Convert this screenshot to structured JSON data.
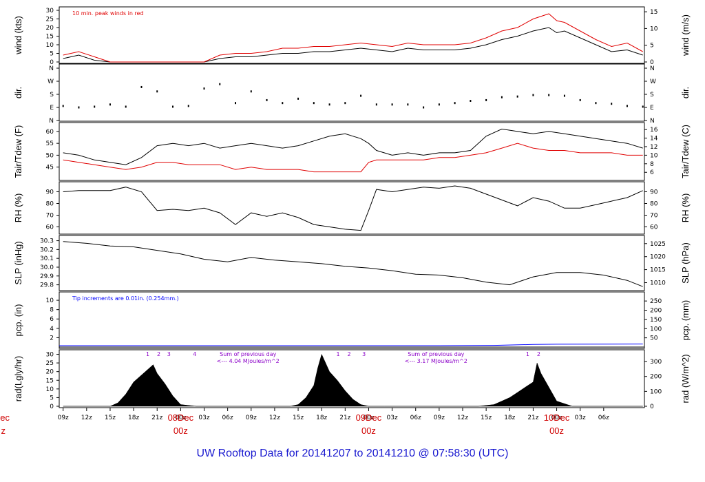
{
  "title": "UW Rooftop Data for 20141207  to  20141210 @ 07:58:30  (UTC)",
  "colors": {
    "primary": "#000000",
    "secondary": "#e00000",
    "precip": "#0000ff",
    "annotation": "#8b00c8",
    "title": "#1a1ad0",
    "date": "#d00000"
  },
  "x_axis": {
    "hour_labels": [
      "09z",
      "12z",
      "15z",
      "18z",
      "21z",
      "00z",
      "03z",
      "06z",
      "09z",
      "12z",
      "15z",
      "18z",
      "21z",
      "00z",
      "03z",
      "06z",
      "09z",
      "12z",
      "15z",
      "18z",
      "21z",
      "00z",
      "03z",
      "06z"
    ],
    "hour_offsets": [
      0,
      3,
      6,
      9,
      12,
      15,
      18,
      21,
      24,
      27,
      30,
      33,
      36,
      39,
      42,
      45,
      48,
      51,
      54,
      57,
      60,
      63,
      66,
      69
    ],
    "x_range_hours": [
      -0.5,
      74.2
    ],
    "day_marks": [
      {
        "hour_offset": 15,
        "date": "08Dec",
        "time": "00z"
      },
      {
        "hour_offset": 39,
        "date": "09Dec",
        "time": "00z"
      },
      {
        "hour_offset": 63,
        "date": "10Dec",
        "time": "00z"
      }
    ],
    "left_cut": {
      "date": "Dec",
      "time": "z"
    }
  },
  "chart_data": [
    {
      "id": "wind",
      "type": "line",
      "ylabel_left": "wind (kts)",
      "ylabel_right": "wind (m/s)",
      "ylim": [
        0,
        30
      ],
      "yticks_left": [
        "0",
        "5",
        "10",
        "15",
        "20",
        "25",
        "30"
      ],
      "yticks_right": [
        {
          "v": 0,
          "t": "0"
        },
        {
          "v": 9.72,
          "t": "5"
        },
        {
          "v": 19.44,
          "t": "10"
        },
        {
          "v": 29.16,
          "t": "15"
        }
      ],
      "annotation": "10 min. peak winds in red",
      "series": [
        {
          "color": "#000000",
          "x": [
            0,
            2,
            4,
            6,
            8,
            10,
            12,
            14,
            16,
            18,
            20,
            22,
            24,
            26,
            28,
            30,
            32,
            34,
            36,
            38,
            40,
            42,
            44,
            46,
            48,
            50,
            52,
            54,
            56,
            58,
            60,
            62,
            63,
            64,
            66,
            68,
            70,
            72,
            74
          ],
          "values": [
            2,
            4,
            1,
            0,
            0,
            0,
            0,
            0,
            0,
            0,
            2,
            3,
            3,
            4,
            5,
            5,
            6,
            6,
            7,
            8,
            7,
            6,
            8,
            7,
            7,
            7,
            8,
            10,
            13,
            15,
            18,
            20,
            17,
            18,
            14,
            10,
            6,
            7,
            4
          ]
        },
        {
          "color": "#e00000",
          "x": [
            0,
            2,
            4,
            6,
            8,
            10,
            12,
            14,
            16,
            18,
            20,
            22,
            24,
            26,
            28,
            30,
            32,
            34,
            36,
            38,
            40,
            42,
            44,
            46,
            48,
            50,
            52,
            54,
            56,
            58,
            60,
            62,
            63,
            64,
            66,
            68,
            70,
            72,
            74
          ],
          "values": [
            4,
            6,
            3,
            0,
            0,
            0,
            0,
            0,
            0,
            0,
            4,
            5,
            5,
            6,
            8,
            8,
            9,
            9,
            10,
            11,
            10,
            9,
            11,
            10,
            10,
            10,
            11,
            14,
            18,
            20,
            25,
            28,
            24,
            23,
            18,
            13,
            9,
            11,
            6
          ]
        }
      ]
    },
    {
      "id": "dir",
      "type": "scatter",
      "ylabel_left": "dir.",
      "ylabel_right": "dir.",
      "ylim": [
        0,
        360
      ],
      "yticks_left": [
        "N",
        "E",
        "S",
        "W",
        "N"
      ],
      "yticks_right": [
        "N",
        "E",
        "S",
        "W",
        "N"
      ],
      "series": [
        {
          "color": "#000000",
          "x": [
            0,
            2,
            4,
            6,
            8,
            10,
            12,
            14,
            16,
            18,
            20,
            22,
            24,
            26,
            28,
            30,
            32,
            34,
            36,
            38,
            40,
            42,
            44,
            46,
            48,
            50,
            52,
            54,
            56,
            58,
            60,
            62,
            64,
            66,
            68,
            70,
            72,
            74
          ],
          "values": [
            100,
            90,
            95,
            110,
            95,
            230,
            200,
            95,
            100,
            220,
            250,
            120,
            200,
            140,
            120,
            150,
            120,
            110,
            120,
            170,
            110,
            110,
            110,
            90,
            110,
            120,
            135,
            140,
            160,
            165,
            175,
            175,
            170,
            140,
            120,
            115,
            100,
            95
          ]
        }
      ]
    },
    {
      "id": "temp",
      "type": "line",
      "ylabel_left": "Tair/Tdew (F)",
      "ylabel_right": "Tair/Tdew (C)",
      "ylim": [
        42,
        62
      ],
      "yticks_left": [
        "45",
        "50",
        "55",
        "60"
      ],
      "yticks_right": [
        {
          "v": 42.8,
          "t": "6"
        },
        {
          "v": 46.4,
          "t": "8"
        },
        {
          "v": 50,
          "t": "10"
        },
        {
          "v": 53.6,
          "t": "12"
        },
        {
          "v": 57.2,
          "t": "14"
        },
        {
          "v": 60.8,
          "t": "16"
        }
      ],
      "series": [
        {
          "color": "#000000",
          "x": [
            0,
            2,
            4,
            6,
            8,
            10,
            12,
            14,
            16,
            18,
            20,
            22,
            24,
            26,
            28,
            30,
            32,
            34,
            36,
            38,
            39,
            40,
            42,
            44,
            46,
            48,
            50,
            52,
            54,
            56,
            58,
            60,
            62,
            64,
            66,
            68,
            70,
            72,
            74
          ],
          "values": [
            51,
            50,
            48,
            47,
            46,
            49,
            54,
            55,
            54,
            55,
            53,
            54,
            55,
            54,
            53,
            54,
            56,
            58,
            59,
            57,
            55,
            52,
            50,
            51,
            50,
            51,
            51,
            52,
            58,
            61,
            60,
            59,
            60,
            59,
            58,
            57,
            56,
            55,
            53
          ]
        },
        {
          "color": "#e00000",
          "x": [
            0,
            2,
            4,
            6,
            8,
            10,
            12,
            14,
            16,
            18,
            20,
            22,
            24,
            26,
            28,
            30,
            32,
            34,
            36,
            38,
            39,
            40,
            42,
            44,
            46,
            48,
            50,
            52,
            54,
            56,
            58,
            60,
            62,
            64,
            66,
            68,
            70,
            72,
            74
          ],
          "values": [
            48,
            47,
            46,
            45,
            44,
            45,
            47,
            47,
            46,
            46,
            46,
            44,
            45,
            44,
            44,
            44,
            43,
            43,
            43,
            43,
            47,
            48,
            48,
            48,
            48,
            49,
            49,
            50,
            51,
            53,
            55,
            53,
            52,
            52,
            51,
            51,
            51,
            50,
            50
          ]
        }
      ]
    },
    {
      "id": "rh",
      "type": "line",
      "ylabel_left": "RH (%)",
      "ylabel_right": "RH (%)",
      "ylim": [
        55,
        95
      ],
      "yticks_left": [
        "60",
        "70",
        "80",
        "90"
      ],
      "yticks_right": [
        "60",
        "70",
        "80",
        "90"
      ],
      "series": [
        {
          "color": "#000000",
          "x": [
            0,
            2,
            4,
            6,
            8,
            10,
            12,
            14,
            16,
            18,
            20,
            22,
            24,
            26,
            28,
            30,
            32,
            34,
            36,
            38,
            39,
            40,
            42,
            44,
            46,
            48,
            50,
            52,
            54,
            56,
            58,
            60,
            62,
            64,
            66,
            68,
            70,
            72,
            74
          ],
          "values": [
            90,
            91,
            91,
            91,
            94,
            90,
            74,
            75,
            74,
            76,
            72,
            62,
            72,
            69,
            72,
            68,
            62,
            60,
            58,
            57,
            74,
            92,
            90,
            92,
            94,
            93,
            95,
            93,
            88,
            83,
            78,
            85,
            82,
            76,
            76,
            79,
            82,
            85,
            91
          ]
        }
      ]
    },
    {
      "id": "slp",
      "type": "line",
      "ylabel_left": "SLP (inHg)",
      "ylabel_right": "SLP (hPa)",
      "ylim": [
        29.75,
        30.32
      ],
      "yticks_left": [
        "29.8",
        "29.9",
        "30.0",
        "30.1",
        "30.2",
        "30.3"
      ],
      "yticks_right": [
        {
          "v": 29.824,
          "t": "1010"
        },
        {
          "v": 29.972,
          "t": "1015"
        },
        {
          "v": 30.119,
          "t": "1020"
        },
        {
          "v": 30.267,
          "t": "1025"
        }
      ],
      "series": [
        {
          "color": "#000000",
          "x": [
            0,
            3,
            6,
            9,
            12,
            15,
            18,
            21,
            24,
            27,
            30,
            33,
            36,
            39,
            42,
            45,
            48,
            51,
            54,
            57,
            60,
            63,
            66,
            69,
            72,
            74
          ],
          "values": [
            30.29,
            30.27,
            30.24,
            30.23,
            30.19,
            30.15,
            30.09,
            30.06,
            30.11,
            30.08,
            30.06,
            30.04,
            30.01,
            29.99,
            29.96,
            29.92,
            29.91,
            29.88,
            29.83,
            29.8,
            29.89,
            29.94,
            29.94,
            29.91,
            29.85,
            29.78
          ]
        }
      ]
    },
    {
      "id": "pcp",
      "type": "line",
      "ylabel_left": "pcp. (in)",
      "ylabel_right": "pcp. (mm)",
      "ylim": [
        0,
        10.6
      ],
      "yticks_left": [
        "2",
        "4",
        "6",
        "8",
        "10"
      ],
      "yticks_right": [
        {
          "v": 1.969,
          "t": "50"
        },
        {
          "v": 3.937,
          "t": "100"
        },
        {
          "v": 5.906,
          "t": "150"
        },
        {
          "v": 7.874,
          "t": "200"
        },
        {
          "v": 9.843,
          "t": "250"
        }
      ],
      "annotation": "Tip increments are 0.01in. (0.254mm.)",
      "series": [
        {
          "color": "#000000",
          "x": [
            -0.5,
            74.2
          ],
          "values": [
            0,
            0
          ]
        },
        {
          "color": "#0000ff",
          "x": [
            -0.5,
            48,
            55,
            60,
            63,
            74
          ],
          "values": [
            0.3,
            0.3,
            0.35,
            0.55,
            0.6,
            0.65
          ]
        }
      ]
    },
    {
      "id": "rad",
      "type": "area",
      "ylabel_left": "rad(Lgly/hr)",
      "ylabel_right": "rad (W/m^2)",
      "ylim": [
        0,
        31
      ],
      "yticks_left": [
        "0",
        "5",
        "10",
        "15",
        "20",
        "25",
        "30"
      ],
      "yticks_right": [
        {
          "v": 0,
          "t": "0"
        },
        {
          "v": 8.6,
          "t": "100"
        },
        {
          "v": 17.2,
          "t": "200"
        },
        {
          "v": 25.8,
          "t": "300"
        }
      ],
      "series": [
        {
          "color": "#000000",
          "x": [
            0,
            5,
            6,
            7,
            8,
            9,
            10,
            11,
            11.5,
            12,
            13,
            14,
            15,
            17,
            24,
            29,
            30,
            31,
            32,
            32.5,
            33,
            33.5,
            34,
            35,
            36,
            37,
            38,
            39,
            41,
            48,
            53,
            55,
            56,
            57,
            58,
            59,
            60,
            60.5,
            61,
            62,
            63,
            65,
            74
          ],
          "values": [
            0,
            0,
            0,
            2,
            7,
            14,
            18,
            22,
            24,
            19,
            13,
            6,
            1,
            0,
            0,
            0,
            1,
            5,
            12,
            22,
            30,
            25,
            20,
            15,
            9,
            4,
            1,
            0,
            0,
            0,
            0,
            1,
            3,
            5,
            8,
            11,
            14,
            25,
            19,
            11,
            3,
            0,
            0
          ]
        }
      ],
      "numbers": [
        {
          "t": "1",
          "x": 10.8
        },
        {
          "t": "2",
          "x": 12.2
        },
        {
          "t": "3",
          "x": 13.5
        },
        {
          "t": "4",
          "x": 16.8
        },
        {
          "t": "1",
          "x": 35.1
        },
        {
          "t": "2",
          "x": 36.5
        },
        {
          "t": "3",
          "x": 38.4
        },
        {
          "t": "1",
          "x": 59.3
        },
        {
          "t": "2",
          "x": 60.7
        }
      ],
      "sums": [
        {
          "line1": "Sum of previous day",
          "line2": "<--- 4.04 MJoules/m^2",
          "x": 23.6
        },
        {
          "line1": "Sum of previous day",
          "line2": "<--- 3.17 MJoules/m^2",
          "x": 47.6
        }
      ]
    }
  ]
}
